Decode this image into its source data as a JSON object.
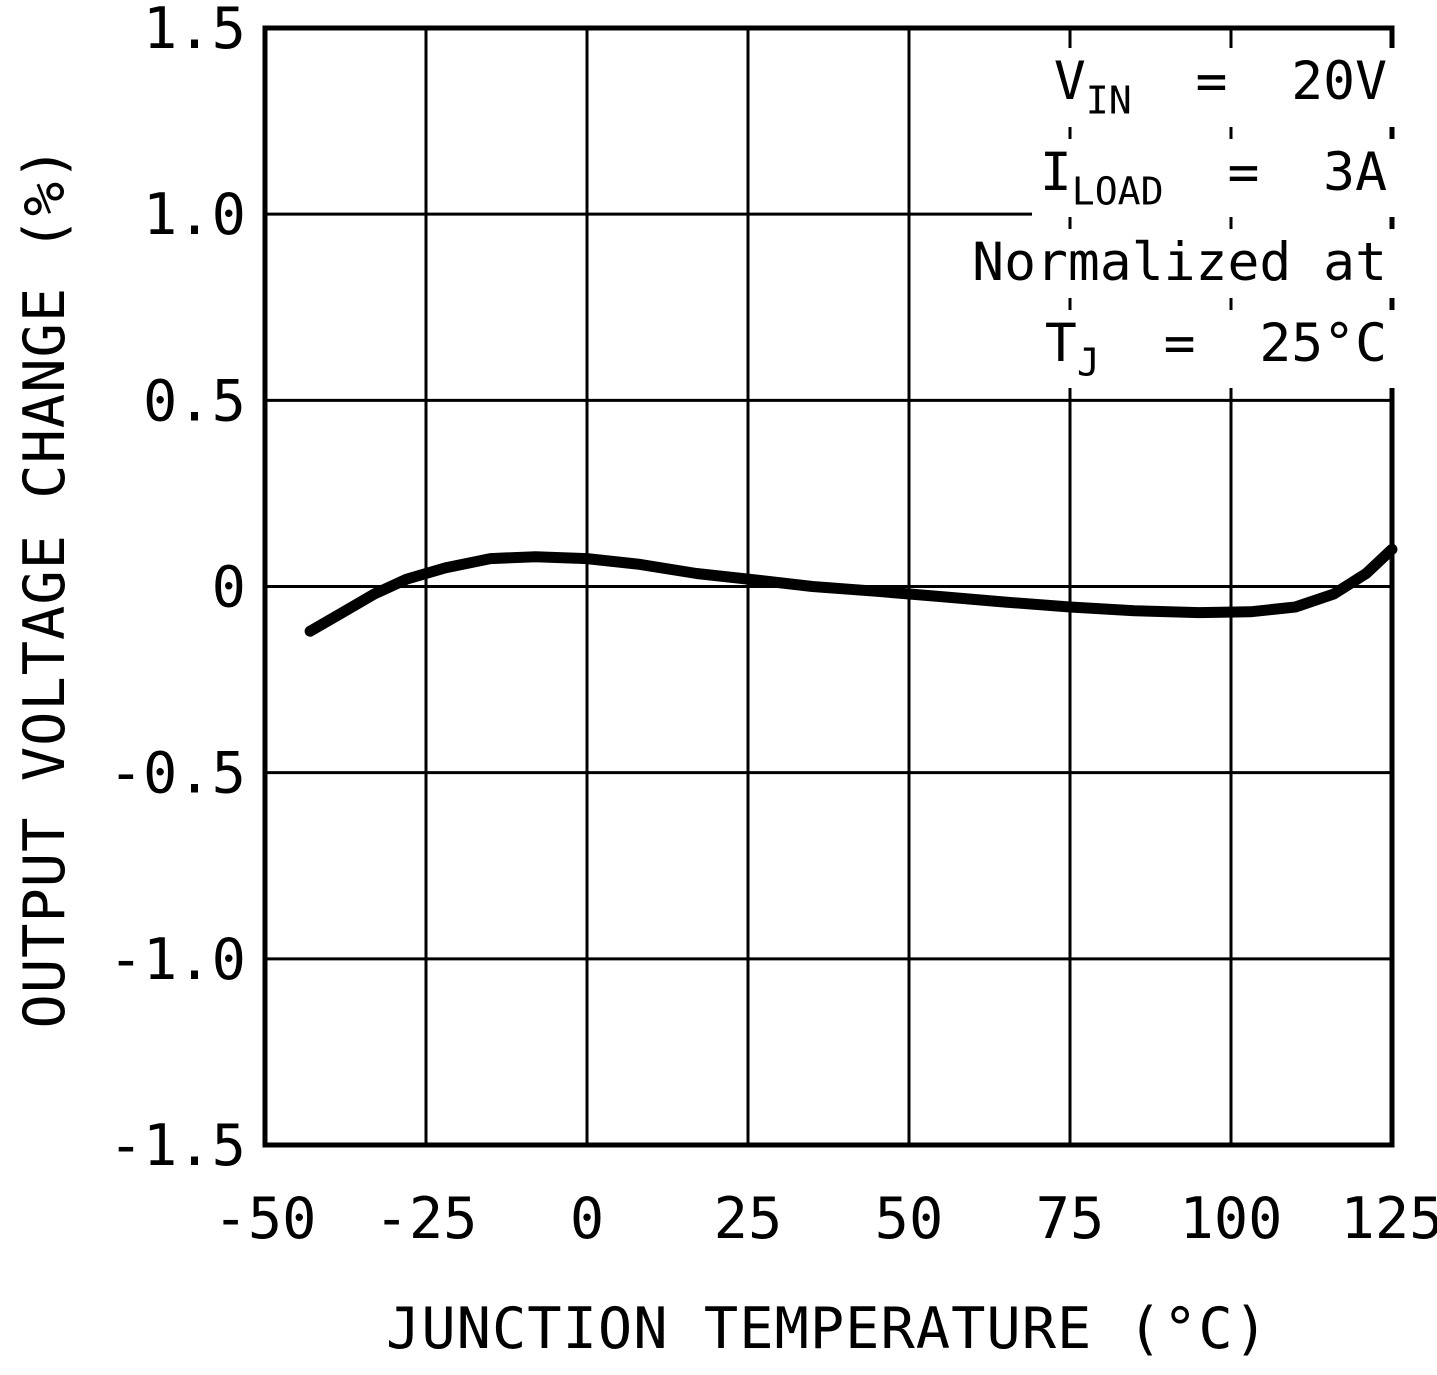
{
  "chart_data": {
    "type": "line",
    "title": "",
    "xlabel": "JUNCTION TEMPERATURE (°C)",
    "ylabel": "OUTPUT VOLTAGE CHANGE (%)",
    "xlim": [
      -50,
      125
    ],
    "ylim": [
      -1.5,
      1.5
    ],
    "xticks": [
      -50,
      -25,
      0,
      25,
      50,
      75,
      100,
      125
    ],
    "yticks": [
      -1.5,
      -1.0,
      -0.5,
      0,
      0.5,
      1.0,
      1.5
    ],
    "xtick_labels": [
      "-50",
      "-25",
      "0",
      "25",
      "50",
      "75",
      "100",
      "125"
    ],
    "ytick_labels": [
      "-1.5",
      "-1.0",
      "-0.5",
      "0",
      "0.5",
      "1.0",
      "1.5"
    ],
    "grid": true,
    "legend_position": "none",
    "line_color": "#000000",
    "line_width": 11,
    "series": [
      {
        "name": "output-voltage-change",
        "x": [
          -43,
          -38,
          -33,
          -28,
          -22,
          -15,
          -8,
          0,
          8,
          17,
          25,
          35,
          45,
          55,
          65,
          75,
          85,
          95,
          103,
          110,
          116,
          121,
          125
        ],
        "y": [
          -0.12,
          -0.07,
          -0.02,
          0.02,
          0.05,
          0.075,
          0.08,
          0.075,
          0.06,
          0.035,
          0.02,
          0.0,
          -0.013,
          -0.027,
          -0.042,
          -0.055,
          -0.065,
          -0.07,
          -0.068,
          -0.055,
          -0.02,
          0.035,
          0.1
        ]
      }
    ],
    "annotations": [
      {
        "name": "vin-condition",
        "segments": [
          {
            "t": "V"
          },
          {
            "t": "IN",
            "sub": true
          },
          {
            "t": "  =  20V"
          }
        ]
      },
      {
        "name": "iload-condition",
        "segments": [
          {
            "t": "I"
          },
          {
            "t": "LOAD",
            "sub": true
          },
          {
            "t": "  =  3A"
          }
        ]
      },
      {
        "name": "normalized-note",
        "segments": [
          {
            "t": "Normalized at"
          }
        ]
      },
      {
        "name": "tj-condition",
        "segments": [
          {
            "t": "T"
          },
          {
            "t": "J",
            "sub": true
          },
          {
            "t": "  =  25°C"
          }
        ]
      }
    ]
  }
}
